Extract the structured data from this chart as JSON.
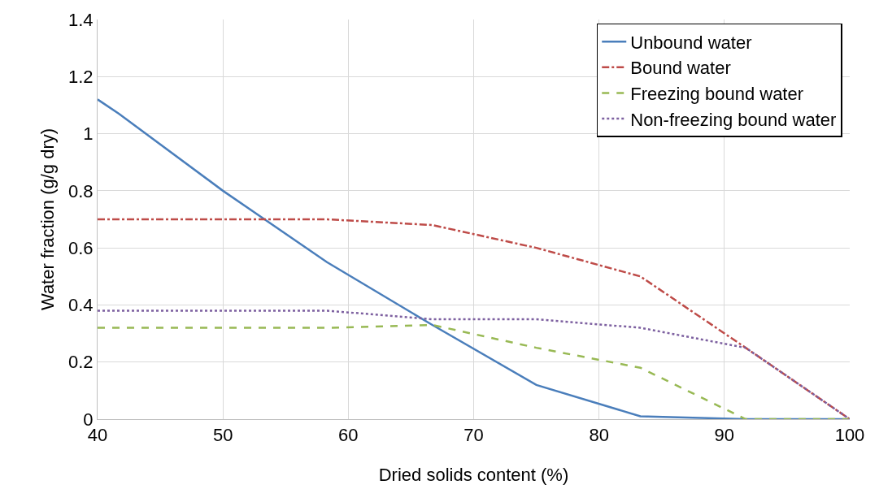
{
  "chart_data": {
    "type": "line",
    "xlabel": "Dried solids content (%)",
    "ylabel": "Water fraction (g/g dry)",
    "xlim": [
      40,
      100
    ],
    "xticks": [
      40,
      50,
      60,
      70,
      80,
      90,
      100
    ],
    "ylim": [
      0,
      1.4
    ],
    "yticks": [
      0,
      0.2,
      0.4,
      0.6,
      0.8,
      1,
      1.2,
      1.4
    ],
    "grid": true,
    "legend": "top right",
    "marker": "none",
    "series": [
      {
        "name": "Unbound water",
        "color": "#4a7ebb",
        "line_style": "solid",
        "x": [
          40,
          41.7,
          50,
          58.3,
          66.7,
          75,
          83.3,
          91.7,
          100
        ],
        "values": [
          1.12,
          1.07,
          0.8,
          0.55,
          0.33,
          0.12,
          0.01,
          0,
          0
        ]
      },
      {
        "name": "Bound water",
        "color": "#be4b48",
        "line_style": "dashdot",
        "x": [
          40,
          50,
          58.3,
          66.7,
          75,
          83.3,
          91.7,
          100
        ],
        "values": [
          0.7,
          0.7,
          0.7,
          0.68,
          0.6,
          0.5,
          0.25,
          0
        ]
      },
      {
        "name": "Freezing bound water",
        "color": "#98b954",
        "line_style": "dashed",
        "x": [
          40,
          58.3,
          66.7,
          75,
          83.3,
          91.7,
          100
        ],
        "values": [
          0.32,
          0.32,
          0.33,
          0.25,
          0.18,
          0,
          0
        ]
      },
      {
        "name": "Non-freezing bound water",
        "color": "#7d60a0",
        "line_style": "dotted",
        "x": [
          40,
          58.3,
          66.7,
          75,
          83.3,
          91.7,
          100
        ],
        "values": [
          0.38,
          0.38,
          0.35,
          0.35,
          0.32,
          0.25,
          0
        ]
      }
    ]
  }
}
